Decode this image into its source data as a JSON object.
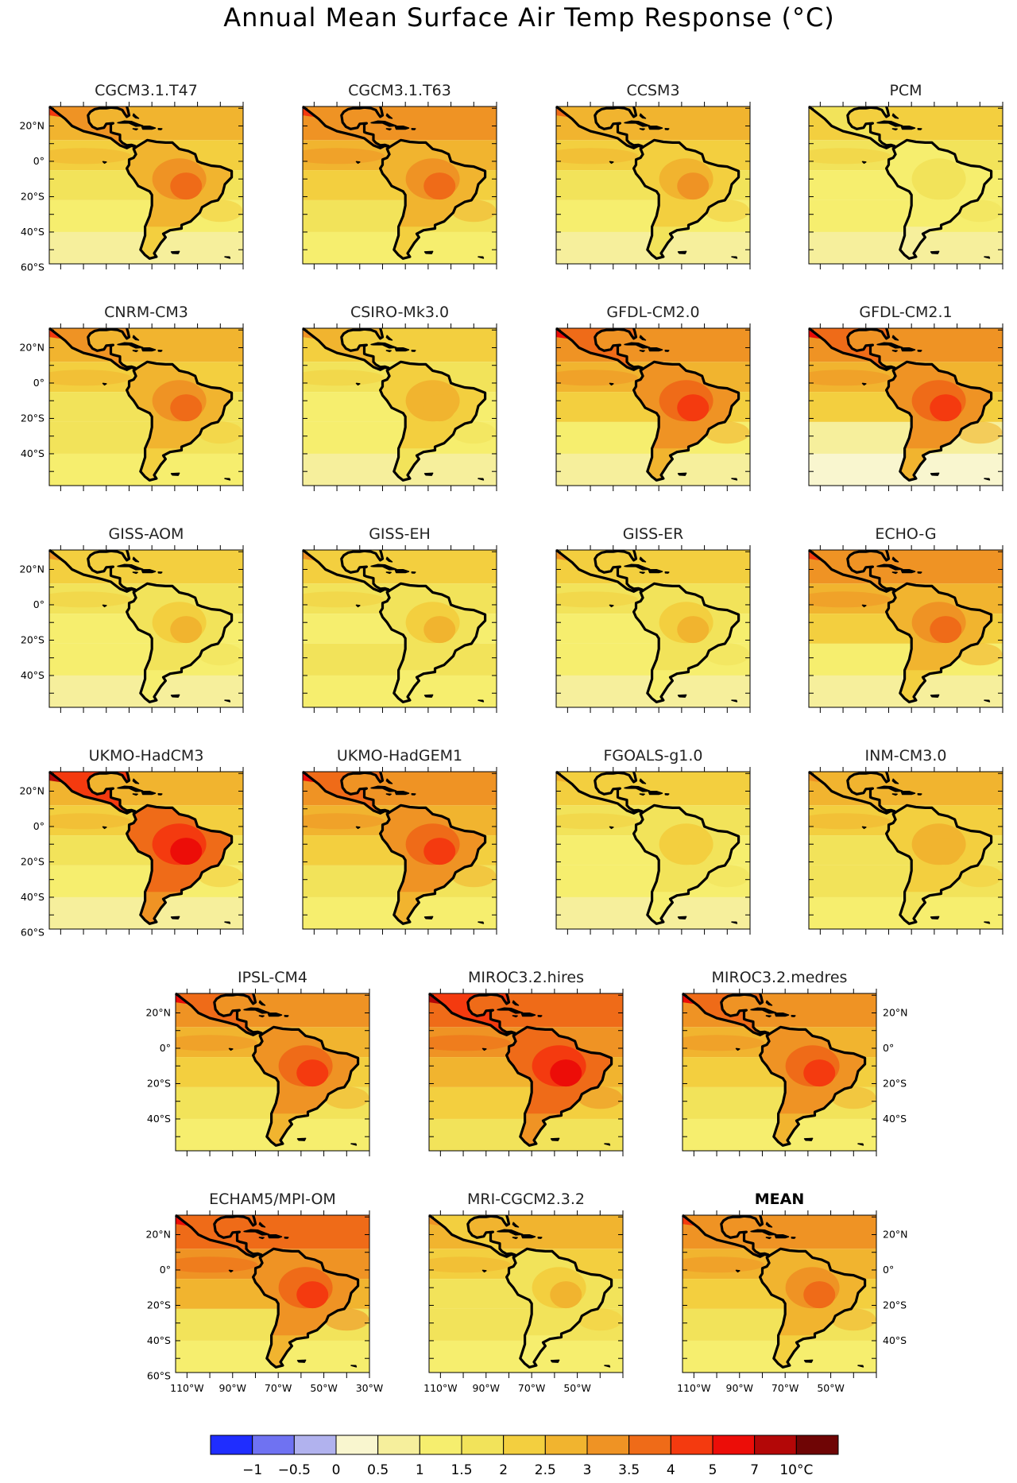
{
  "figure": {
    "title": "Annual Mean Surface Air Temp Response (°C)"
  },
  "chart_data": {
    "type": "heatmap",
    "title": "Annual Mean Surface Air Temp Response (°C)",
    "map_region": "Latin America / South America",
    "units": "°C",
    "colorbar": {
      "labels": [
        "−1",
        "−0.5",
        "0",
        "0.5",
        "1",
        "1.5",
        "2",
        "2.5",
        "3",
        "3.5",
        "4",
        "5",
        "7",
        "10°C"
      ],
      "colors": [
        "#1f2dff",
        "#6f72f2",
        "#b1b2ee",
        "#f9f6cf",
        "#f6ef9c",
        "#f6ee6e",
        "#f2e35a",
        "#f3cf3f",
        "#f1b42f",
        "#ef9324",
        "#ef6b18",
        "#f43a0f",
        "#ec0d08",
        "#b30707",
        "#6f0505"
      ]
    },
    "lat_ticks": [
      "20°N",
      "0°",
      "20°S",
      "40°S",
      "60°S"
    ],
    "lon_ticks": [
      "110°W",
      "90°W",
      "70°W",
      "50°W",
      "30°W"
    ],
    "panels": [
      {
        "name": "CGCM3.1.T47",
        "land_level": 9,
        "hot_level": 10,
        "ocean_level": 7,
        "south_level": 5
      },
      {
        "name": "CGCM3.1.T63",
        "land_level": 9,
        "hot_level": 10,
        "ocean_level": 8,
        "south_level": 6
      },
      {
        "name": "CCSM3",
        "land_level": 8,
        "hot_level": 9,
        "ocean_level": 7,
        "south_level": 5
      },
      {
        "name": "PCM",
        "land_level": 6,
        "hot_level": 6,
        "ocean_level": 6,
        "south_level": 5
      },
      {
        "name": "CNRM-CM3",
        "land_level": 9,
        "hot_level": 10,
        "ocean_level": 7,
        "south_level": 6
      },
      {
        "name": "CSIRO-Mk3.0",
        "land_level": 8,
        "hot_level": 8,
        "ocean_level": 6,
        "south_level": 5
      },
      {
        "name": "GFDL-CM2.0",
        "land_level": 10,
        "hot_level": 11,
        "ocean_level": 8,
        "south_level": 5
      },
      {
        "name": "GFDL-CM2.1",
        "land_level": 10,
        "hot_level": 11,
        "ocean_level": 8,
        "south_level": 4
      },
      {
        "name": "GISS-AOM",
        "land_level": 7,
        "hot_level": 8,
        "ocean_level": 6,
        "south_level": 5
      },
      {
        "name": "GISS-EH",
        "land_level": 7,
        "hot_level": 8,
        "ocean_level": 6,
        "south_level": 6
      },
      {
        "name": "GISS-ER",
        "land_level": 7,
        "hot_level": 8,
        "ocean_level": 6,
        "south_level": 5
      },
      {
        "name": "ECHO-G",
        "land_level": 9,
        "hot_level": 10,
        "ocean_level": 8,
        "south_level": 5
      },
      {
        "name": "UKMO-HadCM3",
        "land_level": 11,
        "hot_level": 12,
        "ocean_level": 7,
        "south_level": 5
      },
      {
        "name": "UKMO-HadGEM1",
        "land_level": 10,
        "hot_level": 11,
        "ocean_level": 8,
        "south_level": 6
      },
      {
        "name": "FGOALS-g1.0",
        "land_level": 7,
        "hot_level": 7,
        "ocean_level": 6,
        "south_level": 5
      },
      {
        "name": "INM-CM3.0",
        "land_level": 8,
        "hot_level": 8,
        "ocean_level": 7,
        "south_level": 6
      },
      {
        "name": "IPSL-CM4",
        "land_level": 10,
        "hot_level": 11,
        "ocean_level": 8,
        "south_level": 6
      },
      {
        "name": "MIROC3.2.hires",
        "land_level": 11,
        "hot_level": 12,
        "ocean_level": 9,
        "south_level": 7
      },
      {
        "name": "MIROC3.2.medres",
        "land_level": 10,
        "hot_level": 11,
        "ocean_level": 8,
        "south_level": 6
      },
      {
        "name": "ECHAM5/MPI-OM",
        "land_level": 10,
        "hot_level": 11,
        "ocean_level": 9,
        "south_level": 6
      },
      {
        "name": "MRI-CGCM2.3.2",
        "land_level": 7,
        "hot_level": 8,
        "ocean_level": 7,
        "south_level": 6
      },
      {
        "name": "MEAN",
        "land_level": 9,
        "hot_level": 10,
        "ocean_level": 8,
        "south_level": 6
      }
    ]
  }
}
